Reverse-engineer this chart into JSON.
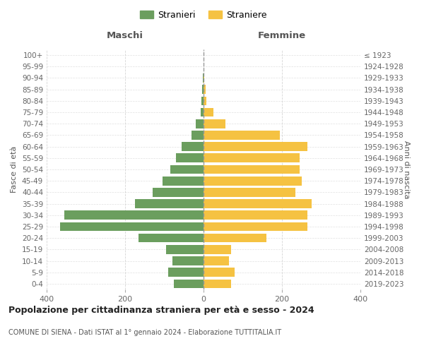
{
  "age_groups": [
    "0-4",
    "5-9",
    "10-14",
    "15-19",
    "20-24",
    "25-29",
    "30-34",
    "35-39",
    "40-44",
    "45-49",
    "50-54",
    "55-59",
    "60-64",
    "65-69",
    "70-74",
    "75-79",
    "80-84",
    "85-89",
    "90-94",
    "95-99",
    "100+"
  ],
  "birth_years": [
    "2019-2023",
    "2014-2018",
    "2009-2013",
    "2004-2008",
    "1999-2003",
    "1994-1998",
    "1989-1993",
    "1984-1988",
    "1979-1983",
    "1974-1978",
    "1969-1973",
    "1964-1968",
    "1959-1963",
    "1954-1958",
    "1949-1953",
    "1944-1948",
    "1939-1943",
    "1934-1938",
    "1929-1933",
    "1924-1928",
    "≤ 1923"
  ],
  "maschi": [
    75,
    90,
    80,
    95,
    165,
    365,
    355,
    175,
    130,
    105,
    85,
    70,
    55,
    30,
    20,
    8,
    5,
    3,
    1,
    0,
    0
  ],
  "femmine": [
    70,
    80,
    65,
    70,
    160,
    265,
    265,
    275,
    235,
    250,
    245,
    245,
    265,
    195,
    55,
    25,
    8,
    5,
    1,
    0,
    0
  ],
  "color_maschi": "#6b9e5e",
  "color_femmine": "#f5c242",
  "title": "Popolazione per cittadinanza straniera per età e sesso - 2024",
  "subtitle": "COMUNE DI SIENA - Dati ISTAT al 1° gennaio 2024 - Elaborazione TUTTITALIA.IT",
  "label_left": "Maschi",
  "label_right": "Femmine",
  "ylabel_left": "Fasce di età",
  "ylabel_right": "Anni di nascita",
  "legend_maschi": "Stranieri",
  "legend_femmine": "Straniere",
  "xlim": 400,
  "background_color": "#ffffff",
  "grid_color": "#cccccc"
}
